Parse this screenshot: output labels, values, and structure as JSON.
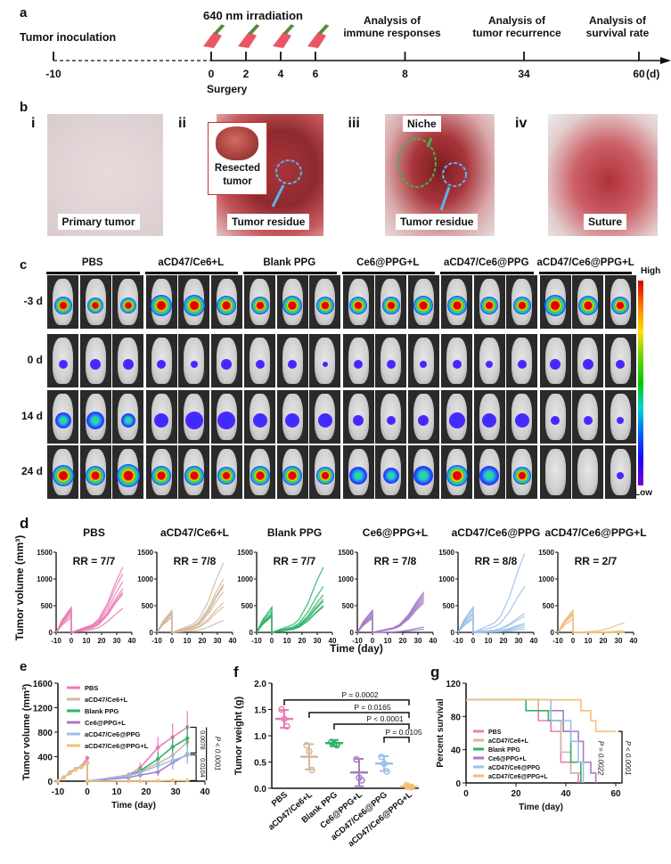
{
  "panel_labels": {
    "a": "a",
    "b": "b",
    "c": "c",
    "d": "d",
    "e": "e",
    "f": "f",
    "g": "g"
  },
  "timeline": {
    "irradiation_label": "640 nm irradiation",
    "events": [
      {
        "day": -10,
        "label": "Tumor inoculation"
      },
      {
        "day": 0,
        "label": "Surgery"
      },
      {
        "day": 8,
        "label": "Analysis of immune responses"
      },
      {
        "day": 34,
        "label": "Analysis of tumor recurrence"
      },
      {
        "day": 60,
        "label": "Analysis of survival rate"
      }
    ],
    "ticks": [
      "-10",
      "0",
      "2",
      "4",
      "6",
      "8",
      "34",
      "60"
    ],
    "irradiation_days": [
      0,
      2,
      4,
      6
    ],
    "unit": "(d)",
    "label_analysis_immune_1": "Analysis of",
    "label_analysis_immune_2": "immune responses",
    "label_analysis_recur_1": "Analysis of",
    "label_analysis_recur_2": "tumor recurrence",
    "label_analysis_surv_1": "Analysis of",
    "label_analysis_surv_2": "survival rate",
    "label_inoculation": "Tumor inoculation",
    "label_surgery": "Surgery"
  },
  "photos": [
    {
      "numeral": "i",
      "caption": "Primary tumor"
    },
    {
      "numeral": "ii",
      "caption": "Tumor residue",
      "inset_caption_1": "Resected",
      "inset_caption_2": "tumor"
    },
    {
      "numeral": "iii",
      "caption": "Tumor residue",
      "annotation": "Niche"
    },
    {
      "numeral": "iv",
      "caption": "Suture"
    }
  ],
  "imaging": {
    "groups": [
      "PBS",
      "aCD47/Ce6+L",
      "Blank PPG",
      "Ce6@PPG+L",
      "aCD47/Ce6@PPG",
      "aCD47/Ce6@PPG+L"
    ],
    "rows": [
      "-3 d",
      "0 d",
      "14 d",
      "24 d"
    ],
    "colorbar_high": "High",
    "colorbar_low": "Low"
  },
  "chart_data": [
    {
      "panel": "d",
      "type": "line",
      "ylabel": "Tumor volume (mm³)",
      "xlabel": "Time (day)",
      "xlim": [
        -10,
        40
      ],
      "ylim": [
        0,
        1500
      ],
      "xticks": [
        "-10",
        "0",
        "10",
        "20",
        "30",
        "40"
      ],
      "yticks": [
        "0",
        "500",
        "1000",
        "1500"
      ],
      "subplots": [
        {
          "title": "PBS",
          "rr": "RR = 7/7",
          "color": "#e97ab6",
          "finals": [
            1220,
            1100,
            950,
            820,
            760,
            720,
            450
          ]
        },
        {
          "title": "aCD47/Ce6+L",
          "rr": "RR = 7/8",
          "color": "#d4b79c",
          "finals": [
            1300,
            1000,
            900,
            860,
            760,
            560,
            480,
            220
          ]
        },
        {
          "title": "Blank PPG",
          "rr": "RR = 7/7",
          "color": "#2fb36a",
          "finals": [
            1220,
            860,
            700,
            620,
            580,
            500,
            480
          ]
        },
        {
          "title": "Ce6@PPG+L",
          "rr": "RR = 7/8",
          "color": "#a77cc4",
          "finals": [
            760,
            720,
            680,
            640,
            600,
            560,
            100,
            60
          ]
        },
        {
          "title": "aCD47/Ce6@PPG",
          "rr": "RR = 8/8",
          "color": "#9bbfea",
          "finals": [
            1480,
            860,
            350,
            300,
            170,
            140,
            100,
            60
          ]
        },
        {
          "title": "aCD47/Ce6@PPG+L",
          "rr": "RR = 2/7",
          "color": "#f0bf7a",
          "finals": [
            180,
            30,
            0,
            0,
            0,
            0,
            0
          ]
        }
      ]
    },
    {
      "panel": "e",
      "type": "line",
      "xlabel": "Time (day)",
      "ylabel": "Tumor volume (mm³)",
      "xlim": [
        -10,
        40
      ],
      "ylim": [
        0,
        1600
      ],
      "xticks": [
        "-10",
        "0",
        "10",
        "20",
        "30",
        "40"
      ],
      "yticks": [
        "0",
        "400",
        "800",
        "1200",
        "1600"
      ],
      "x": [
        -10,
        -8,
        -6,
        -4,
        -2,
        0,
        0,
        14,
        18,
        24,
        29,
        34
      ],
      "series": [
        {
          "name": "PBS",
          "color": "#e97ab6",
          "values": [
            0,
            60,
            140,
            200,
            240,
            380,
            0,
            100,
            220,
            550,
            720,
            880
          ]
        },
        {
          "name": "aCD47/Ce6+L",
          "color": "#d4b79c",
          "values": [
            0,
            60,
            130,
            190,
            230,
            300,
            0,
            90,
            160,
            290,
            420,
            640
          ]
        },
        {
          "name": "Blank PPG",
          "color": "#2fb36a",
          "values": [
            0,
            60,
            130,
            190,
            230,
            300,
            0,
            90,
            170,
            360,
            560,
            700
          ]
        },
        {
          "name": "Ce6@PPG+L",
          "color": "#a77cc4",
          "values": [
            0,
            60,
            130,
            190,
            230,
            300,
            0,
            60,
            100,
            150,
            300,
            440
          ]
        },
        {
          "name": "aCD47/Ce6@PPG",
          "color": "#9bbfea",
          "values": [
            0,
            60,
            130,
            190,
            230,
            300,
            0,
            90,
            140,
            250,
            340,
            420
          ]
        },
        {
          "name": "aCD47/Ce6@PPG+L",
          "color": "#f0bf7a",
          "values": [
            0,
            60,
            130,
            190,
            230,
            300,
            0,
            0,
            0,
            5,
            10,
            10
          ]
        }
      ],
      "annotations": [
        "0.0078",
        "0.0104",
        "P < 0.0001"
      ]
    },
    {
      "panel": "f",
      "type": "scatter",
      "ylabel": "Tumor weight (g)",
      "ylim": [
        0,
        2.0
      ],
      "yticks": [
        "0.0",
        "0.5",
        "1.0",
        "1.5",
        "2.0"
      ],
      "categories": [
        "PBS",
        "aCD47/Ce6+L",
        "Blank PPG",
        "Ce6@PPG+L",
        "aCD47/Ce6@PPG",
        "aCD47/Ce6@PPG+L"
      ],
      "colors": [
        "#e97ab6",
        "#d4b79c",
        "#2fb36a",
        "#a77cc4",
        "#9bbfea",
        "#f0bf7a"
      ],
      "means": [
        1.32,
        0.6,
        0.86,
        0.3,
        0.47,
        0.03
      ],
      "sd": [
        0.17,
        0.24,
        0.06,
        0.26,
        0.14,
        0.04
      ],
      "points": [
        [
          1.5,
          1.32,
          1.18
        ],
        [
          0.82,
          0.7,
          0.35
        ],
        [
          0.88,
          0.85,
          0.82
        ],
        [
          0.55,
          0.2,
          0.15
        ],
        [
          0.6,
          0.47,
          0.32
        ],
        [
          0.06,
          0.03,
          0.02
        ]
      ],
      "comparisons": [
        {
          "from": "PBS",
          "to": "aCD47/Ce6@PPG+L",
          "label": "P = 0.0002"
        },
        {
          "from": "aCD47/Ce6+L",
          "to": "aCD47/Ce6@PPG+L",
          "label": "P = 0.0165"
        },
        {
          "from": "Blank PPG",
          "to": "aCD47/Ce6@PPG+L",
          "label": "P < 0.0001"
        },
        {
          "from": "aCD47/Ce6@PPG",
          "to": "aCD47/Ce6@PPG+L",
          "label": "P = 0.0105"
        }
      ]
    },
    {
      "panel": "g",
      "type": "line",
      "title": "",
      "xlabel": "Time (day)",
      "ylabel": "Percent survival",
      "xlim": [
        0,
        60
      ],
      "ylim": [
        0,
        120
      ],
      "xticks": [
        "0",
        "20",
        "40",
        "60"
      ],
      "yticks": [
        "0",
        "40",
        "80",
        "120"
      ],
      "series": [
        {
          "name": "PBS",
          "color": "#e97ab6",
          "steps": [
            [
              0,
              100
            ],
            [
              29,
              100
            ],
            [
              29,
              75
            ],
            [
              34,
              75
            ],
            [
              34,
              62
            ],
            [
              38,
              62
            ],
            [
              38,
              25
            ],
            [
              42,
              25
            ],
            [
              42,
              12
            ],
            [
              45,
              12
            ],
            [
              45,
              0
            ]
          ]
        },
        {
          "name": "aCD47/Ce6+L",
          "color": "#d4b79c",
          "steps": [
            [
              0,
              100
            ],
            [
              29,
              100
            ],
            [
              29,
              87
            ],
            [
              34,
              87
            ],
            [
              34,
              75
            ],
            [
              38,
              75
            ],
            [
              38,
              37
            ],
            [
              42,
              37
            ],
            [
              42,
              12
            ],
            [
              46,
              12
            ],
            [
              46,
              0
            ]
          ]
        },
        {
          "name": "Blank PPG",
          "color": "#2fb36a",
          "steps": [
            [
              0,
              100
            ],
            [
              24,
              100
            ],
            [
              24,
              87
            ],
            [
              33,
              87
            ],
            [
              33,
              75
            ],
            [
              39,
              75
            ],
            [
              39,
              62
            ],
            [
              42,
              62
            ],
            [
              42,
              25
            ],
            [
              46,
              25
            ],
            [
              46,
              0
            ]
          ]
        },
        {
          "name": "Ce6@PPG+L",
          "color": "#a77cc4",
          "steps": [
            [
              0,
              100
            ],
            [
              34,
              100
            ],
            [
              34,
              87
            ],
            [
              39,
              87
            ],
            [
              39,
              62
            ],
            [
              45,
              62
            ],
            [
              45,
              50
            ],
            [
              47,
              50
            ],
            [
              47,
              25
            ],
            [
              50,
              25
            ],
            [
              50,
              12
            ],
            [
              52,
              12
            ],
            [
              52,
              0
            ]
          ]
        },
        {
          "name": "aCD47/Ce6@PPG",
          "color": "#9bbfea",
          "steps": [
            [
              0,
              100
            ],
            [
              34,
              100
            ],
            [
              34,
              75
            ],
            [
              42,
              75
            ],
            [
              42,
              50
            ],
            [
              45,
              50
            ],
            [
              45,
              25
            ],
            [
              47,
              25
            ],
            [
              47,
              0
            ]
          ]
        },
        {
          "name": "aCD47/Ce6@PPG+L",
          "color": "#f0bf7a",
          "steps": [
            [
              0,
              100
            ],
            [
              46,
              100
            ],
            [
              46,
              87
            ],
            [
              50,
              87
            ],
            [
              50,
              75
            ],
            [
              52,
              75
            ],
            [
              52,
              62
            ],
            [
              60,
              62
            ]
          ]
        }
      ],
      "annotations": [
        "P = 0.0022",
        "P < 0.0001"
      ]
    }
  ]
}
